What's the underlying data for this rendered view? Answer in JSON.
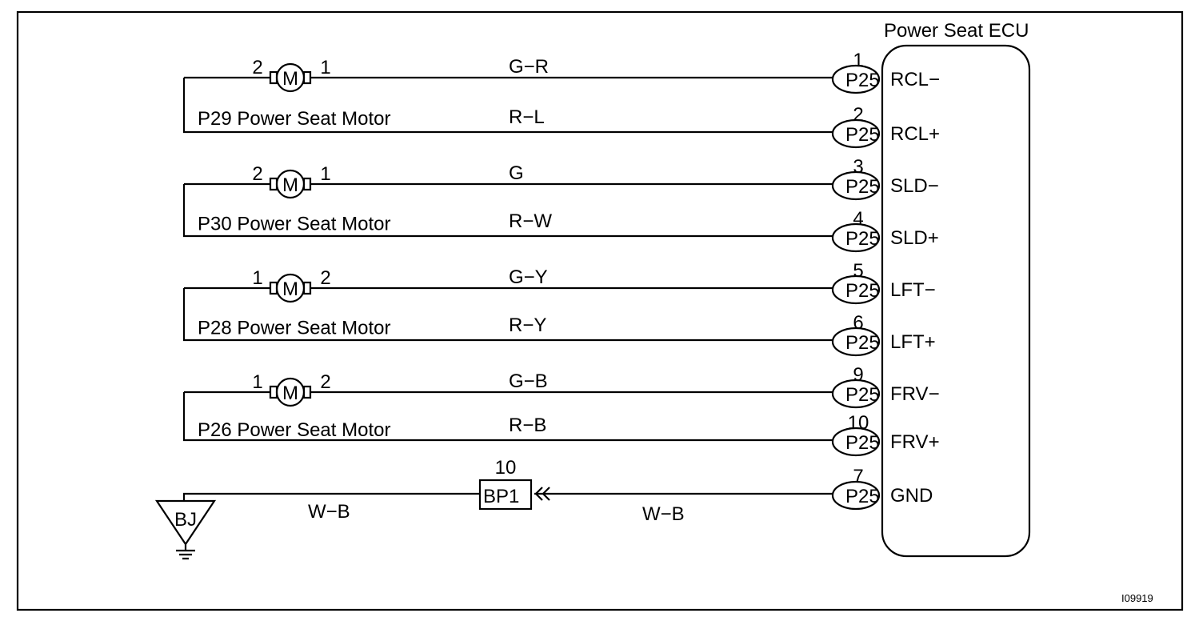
{
  "diagram_id": "I09919",
  "ecu": {
    "title": "Power Seat ECU",
    "connector": "P25",
    "pins": [
      {
        "pin": "1",
        "terminal": "RCL−"
      },
      {
        "pin": "2",
        "terminal": "RCL+"
      },
      {
        "pin": "3",
        "terminal": "SLD−"
      },
      {
        "pin": "4",
        "terminal": "SLD+"
      },
      {
        "pin": "5",
        "terminal": "LFT−"
      },
      {
        "pin": "6",
        "terminal": "LFT+"
      },
      {
        "pin": "9",
        "terminal": "FRV−"
      },
      {
        "pin": "10",
        "terminal": "FRV+"
      },
      {
        "pin": "7",
        "terminal": "GND"
      }
    ]
  },
  "motors": [
    {
      "name": "P29 Power Seat Motor",
      "symbol": "M",
      "left_pin": "2",
      "right_pin": "1",
      "top_wire": "G−R",
      "bottom_wire": "R−L"
    },
    {
      "name": "P30 Power Seat Motor",
      "symbol": "M",
      "left_pin": "2",
      "right_pin": "1",
      "top_wire": "G",
      "bottom_wire": "R−W"
    },
    {
      "name": "P28 Power Seat Motor",
      "symbol": "M",
      "left_pin": "1",
      "right_pin": "2",
      "top_wire": "G−Y",
      "bottom_wire": "R−Y"
    },
    {
      "name": "P26 Power Seat Motor",
      "symbol": "M",
      "left_pin": "1",
      "right_pin": "2",
      "top_wire": "G−B",
      "bottom_wire": "R−B"
    }
  ],
  "ground": {
    "ground_point": "BJ",
    "junction": "BP1",
    "junction_pin": "10",
    "wire_left": "W−B",
    "wire_right": "W−B"
  }
}
